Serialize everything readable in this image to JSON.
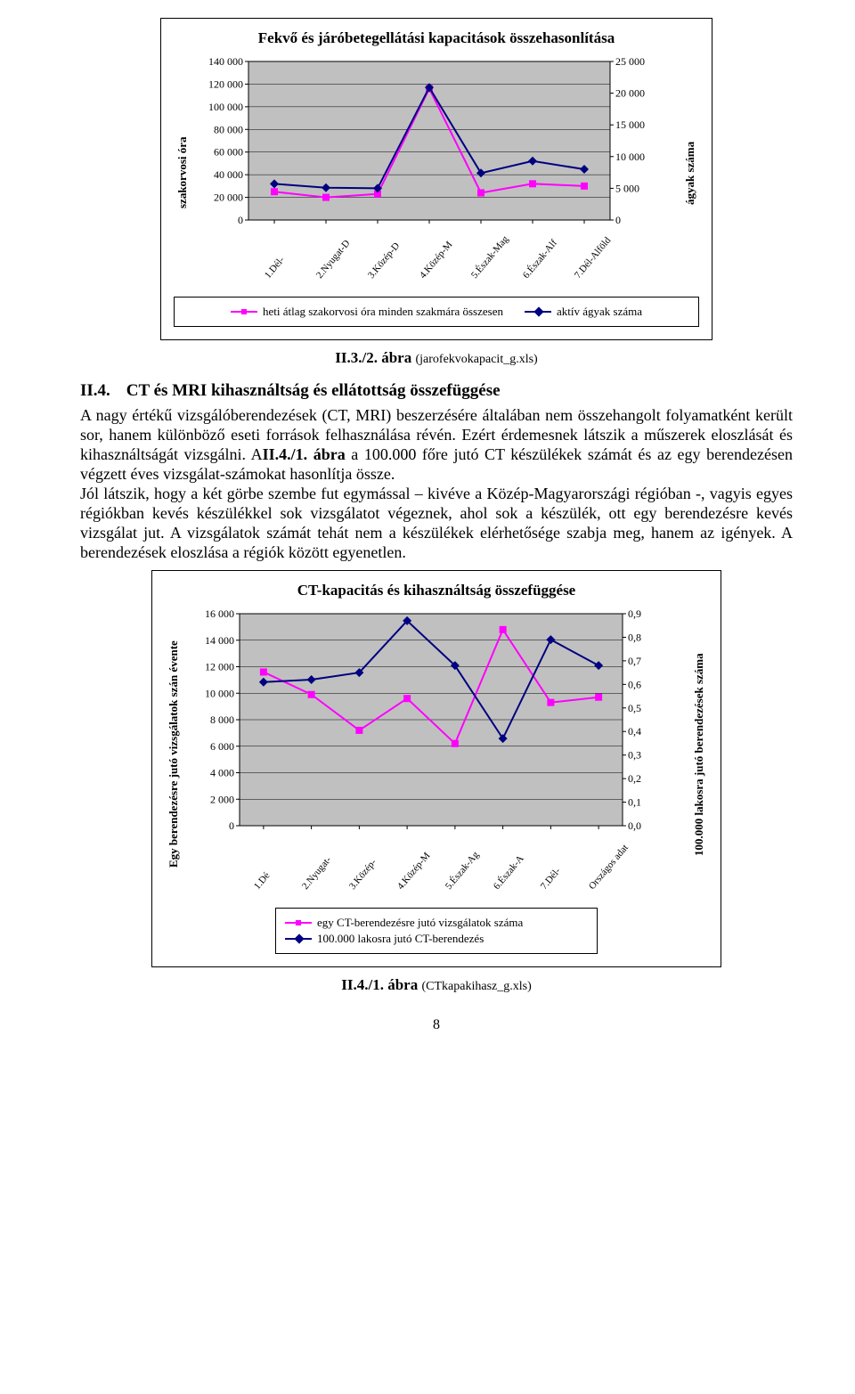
{
  "chart1": {
    "type": "line-dual-axis",
    "title": "Fekvő és járóbetegellátási kapacitások összehasonlítása",
    "background_color": "#ffffff",
    "grid_color": "#000000",
    "plot_fill": "#c0c0c0",
    "left_axis": {
      "label": "szakorvosi óra",
      "ticks": [
        "0",
        "20 000",
        "40 000",
        "60 000",
        "80 000",
        "100 000",
        "120 000",
        "140 000"
      ],
      "min": 0,
      "max": 140000,
      "step": 20000
    },
    "right_axis": {
      "label": "ágyak száma",
      "ticks": [
        "0",
        "5 000",
        "10 000",
        "15 000",
        "20 000",
        "25 000"
      ],
      "min": 0,
      "max": 25000,
      "step": 5000
    },
    "categories": [
      "1.Dél-",
      "2.Nyugat-D",
      "3.Közép-D",
      "4.Közép-M",
      "5.Észak-Mag",
      "6.Észak-Alf",
      "7.Dél-Alföld"
    ],
    "series": [
      {
        "name": "heti átlag szakorvosi óra minden szakmára összesen",
        "axis": "left",
        "color": "#ff00ff",
        "marker": "square",
        "line_width": 2,
        "values": [
          25000,
          20000,
          23000,
          116000,
          24000,
          32000,
          30000
        ]
      },
      {
        "name": "aktív ágyak száma",
        "axis": "right",
        "color": "#000080",
        "marker": "diamond",
        "line_width": 2,
        "values": [
          5700,
          5100,
          5000,
          20900,
          7400,
          9300,
          8000
        ]
      }
    ]
  },
  "caption1": {
    "ref": "II.3./2. ábra",
    "file": "(jarofekvokapacit_g.xls)"
  },
  "section": {
    "num": "II.4.",
    "title": "CT és MRI kihasználtság és ellátottság összefüggése"
  },
  "paragraph": "A nagy értékű vizsgálóberendezések (CT, MRI) beszerzésére általában nem összehangolt folyamatként került sor, hanem különböző eseti források felhasználása révén. Ezért érdemesnek látszik a műszerek eloszlását és kihasználtságát vizsgálni. A",
  "para_bold": "II.4./1. ábra",
  "paragraph_cont": " a 100.000 főre jutó CT készülékek számát és az egy berendezésen végzett éves vizsgálat-számokat hasonlítja össze.\nJól látszik, hogy a két görbe szembe fut egymással – kivéve a Közép-Magyarországi régióban -, vagyis egyes régiókban kevés készülékkel sok vizsgálatot végeznek, ahol sok a készülék, ott egy berendezésre kevés vizsgálat jut. A vizsgálatok számát tehát nem a készülékek elérhetősége szabja meg, hanem az igények. A berendezések eloszlása a régiók között egyenetlen.",
  "chart2": {
    "type": "line-dual-axis",
    "title": "CT-kapacitás és kihasználtság összefüggése",
    "background_color": "#ffffff",
    "grid_color": "#000000",
    "plot_fill": "#c0c0c0",
    "left_axis": {
      "label": "Egy berendezésre jutó vizsgálatok szán évente",
      "ticks": [
        "0",
        "2 000",
        "4 000",
        "6 000",
        "8 000",
        "10 000",
        "12 000",
        "14 000",
        "16 000"
      ],
      "min": 0,
      "max": 16000,
      "step": 2000
    },
    "right_axis": {
      "label": "100.000 lakosra jutó berendezések száma",
      "ticks": [
        "0,0",
        "0,1",
        "0,2",
        "0,3",
        "0,4",
        "0,5",
        "0,6",
        "0,7",
        "0,8",
        "0,9"
      ],
      "min": 0,
      "max": 0.9,
      "step": 0.1
    },
    "categories": [
      "1.Dé",
      "2.Nyugat-",
      "3.Közép-",
      "4.Közép-M",
      "5.Észak-Ag",
      "6.Észak-A",
      "7.Dél-",
      "Országos adat"
    ],
    "series": [
      {
        "name": "egy CT-berendezésre jutó vizsgálatok száma",
        "axis": "left",
        "color": "#ff00ff",
        "marker": "square",
        "line_width": 2,
        "values": [
          11600,
          9900,
          7200,
          9600,
          6200,
          14800,
          9300,
          9700
        ]
      },
      {
        "name": "100.000 lakosra jutó CT-berendezés",
        "axis": "right",
        "color": "#000080",
        "marker": "diamond",
        "line_width": 2,
        "values": [
          0.61,
          0.62,
          0.65,
          0.87,
          0.68,
          0.37,
          0.79,
          0.68
        ]
      }
    ]
  },
  "caption2": {
    "ref": "II.4./1. ábra",
    "file": "(CTkapakihasz_g.xls)"
  },
  "page_number": "8"
}
